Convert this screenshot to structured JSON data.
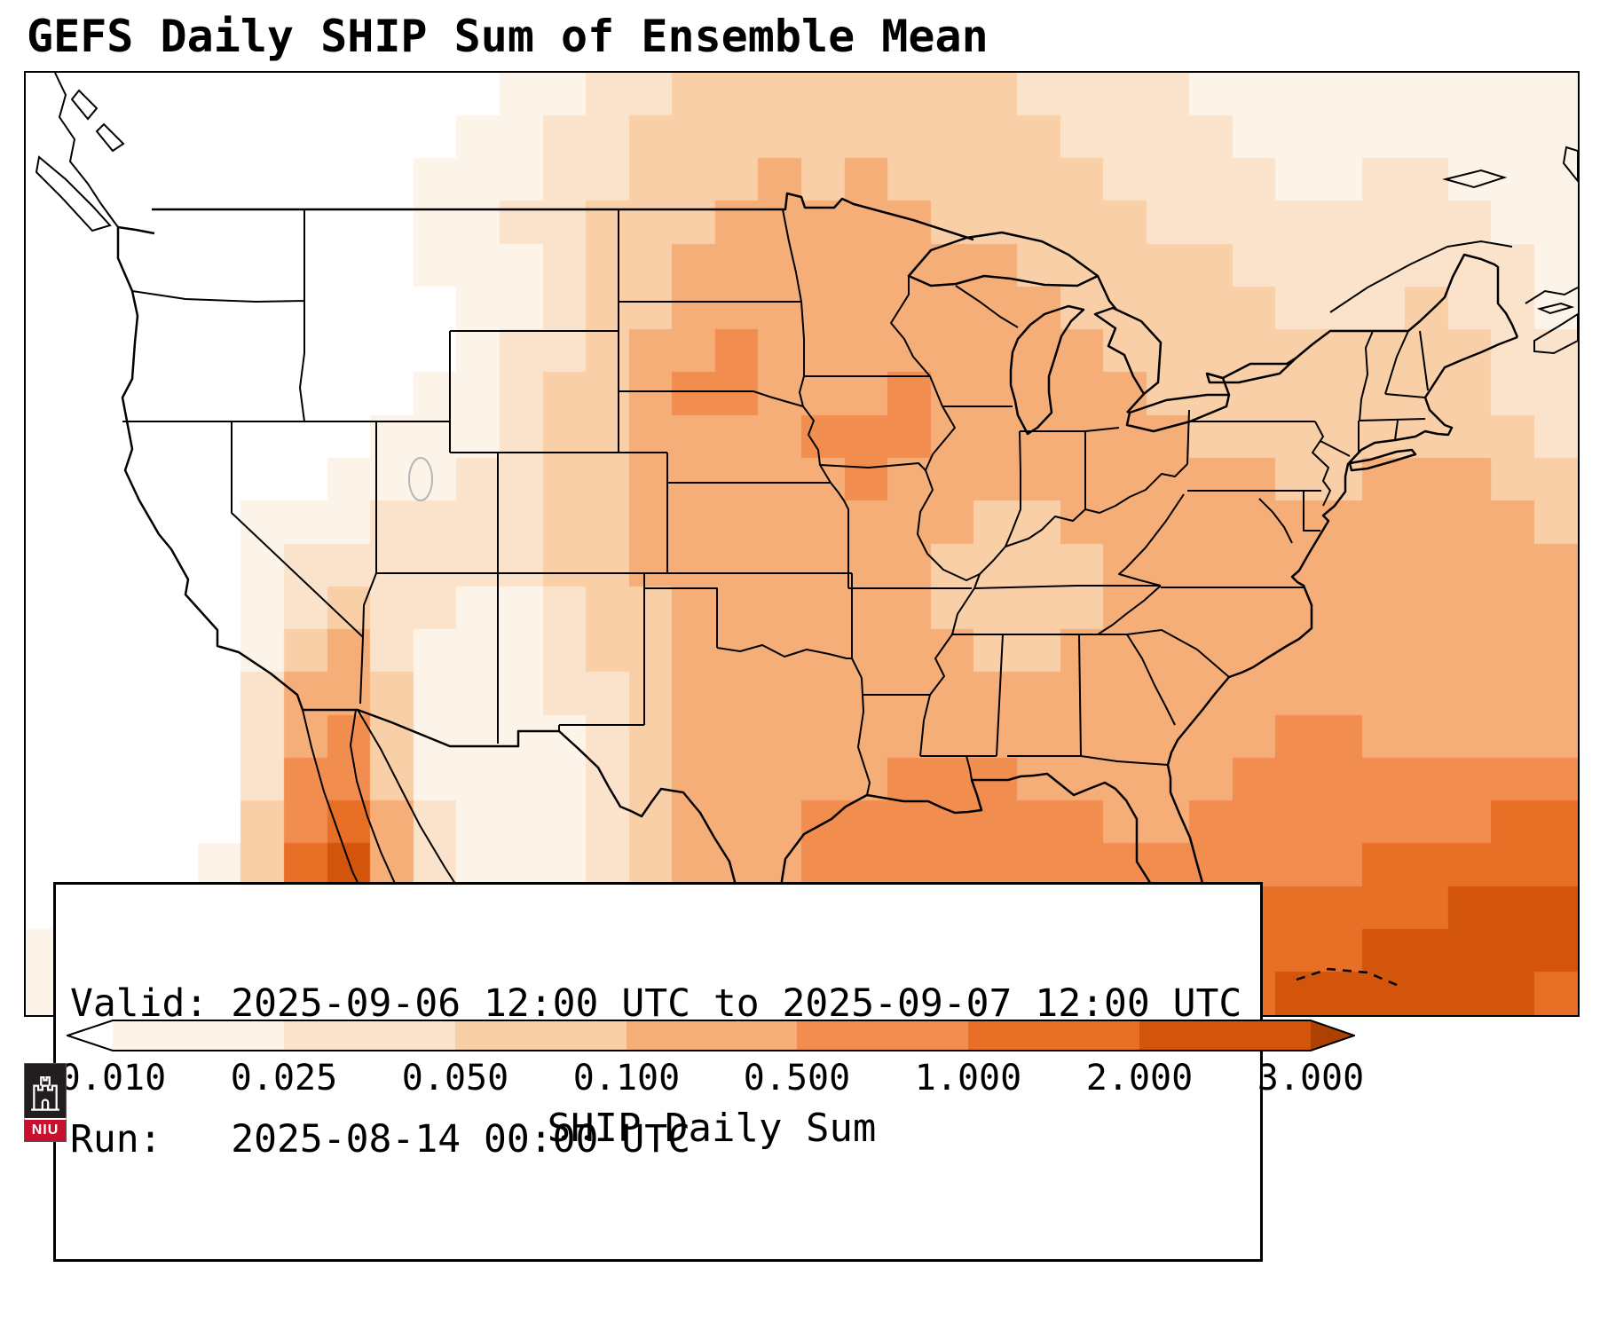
{
  "title": "GEFS Daily SHIP Sum of Ensemble Mean",
  "info_box": {
    "valid_line": "Valid: 2025-09-06 12:00 UTC to 2025-09-07 12:00 UTC",
    "run_line": "Run:   2025-08-14 00:00 UTC"
  },
  "colorbar": {
    "label": "SHIP Daily Sum",
    "ticks": [
      "0.010",
      "0.025",
      "0.050",
      "0.100",
      "0.500",
      "1.000",
      "2.000",
      "3.000"
    ],
    "under_color": "#ffffff",
    "segment_colors": [
      "#fdf4e9",
      "#fbe3cb",
      "#f9cfa8",
      "#f6ae79",
      "#f18d4e",
      "#e76f26",
      "#d2550b"
    ],
    "over_color": "#ad4102"
  },
  "logo": {
    "text": "NIU",
    "band_color": "#c8102e",
    "box_color": "#221e20"
  },
  "chart_data": {
    "type": "heatmap",
    "title": "GEFS Daily SHIP Sum of Ensemble Mean",
    "colorbar_label": "SHIP Daily Sum",
    "levels": [
      0.01,
      0.025,
      0.05,
      0.1,
      0.5,
      1.0,
      2.0,
      3.0
    ],
    "extend": "both",
    "valid": "2025-09-06 12:00 UTC to 2025-09-07 12:00 UTC",
    "run": "2025-08-14 00:00 UTC",
    "palette": [
      "#ffffff",
      "#fdf4e9",
      "#fbe3cb",
      "#f9cfa8",
      "#f6ae79",
      "#f18d4e",
      "#e76f26",
      "#d2550b",
      "#ad4102"
    ],
    "grid": {
      "cols": 36,
      "rows": 22,
      "encoding": "one digit per cell, 0-8 = bin index into palette (0 = <0.010, 8 = >3.000)",
      "rows_data": [
        "000000000001122333333332222111111111",
        "000000000011223333333333222211111111",
        "000000000111223334343333322221122111",
        "000000000112233344444333332222222211",
        "000000000111233444444443333322222221",
        "000000000011233444444444333332223221",
        "000000000012234454444444433333333322",
        "000000000112334554445444443333333322",
        "000000001112334444555444444333333332",
        "000000011122334444454444444443344433",
        "000001112222334444444433444444444443",
        "000001222222334444444333344444444444",
        "000001232211233444444333344444444444",
        "000001342111233444444433444444444444",
        "000002443111223444444444444444444444",
        "000002453111123444444444444445544444",
        "000002553111123444445554444455555555",
        "000003564211123444555555544555555566",
        "000013674211123444555555555555566666",
        "000013654211223445555555555566666777",
        "111113554222233455555555555666677777",
        "111112443222334455555555566667777776"
      ]
    }
  }
}
